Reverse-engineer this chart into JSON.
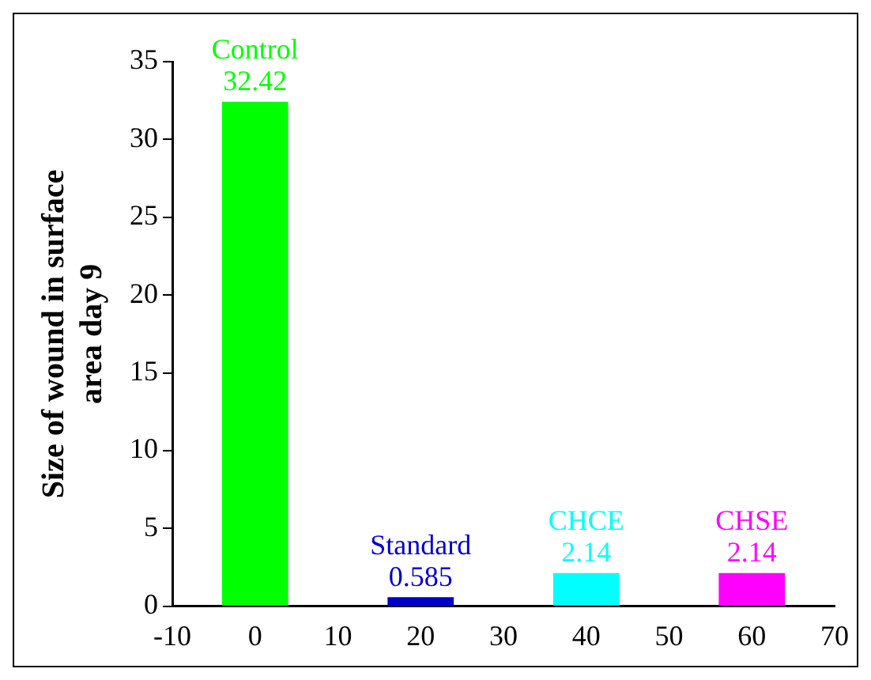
{
  "chart_data": {
    "type": "bar",
    "ylabel": "Size of wound in surface area day 9",
    "series": [
      {
        "name": "Control",
        "color": "#00ff00",
        "x": [
          0
        ],
        "values": [
          32.42
        ]
      },
      {
        "name": "Standard",
        "color": "#0000cc",
        "x": [
          20
        ],
        "values": [
          0.585
        ]
      },
      {
        "name": "CHCE",
        "color": "#00ffff",
        "x": [
          40
        ],
        "values": [
          2.14
        ]
      },
      {
        "name": "CHSE",
        "color": "#ff00ff",
        "x": [
          60
        ],
        "values": [
          2.14
        ]
      }
    ],
    "xlim": [
      -10,
      70
    ],
    "xticks": [
      -10,
      0,
      10,
      20,
      30,
      40,
      50,
      60,
      70
    ],
    "ylim": [
      0,
      35
    ],
    "yticks": [
      0,
      5,
      10,
      15,
      20,
      25,
      30,
      35
    ],
    "data_labels": true,
    "grid": false,
    "legend": false
  }
}
